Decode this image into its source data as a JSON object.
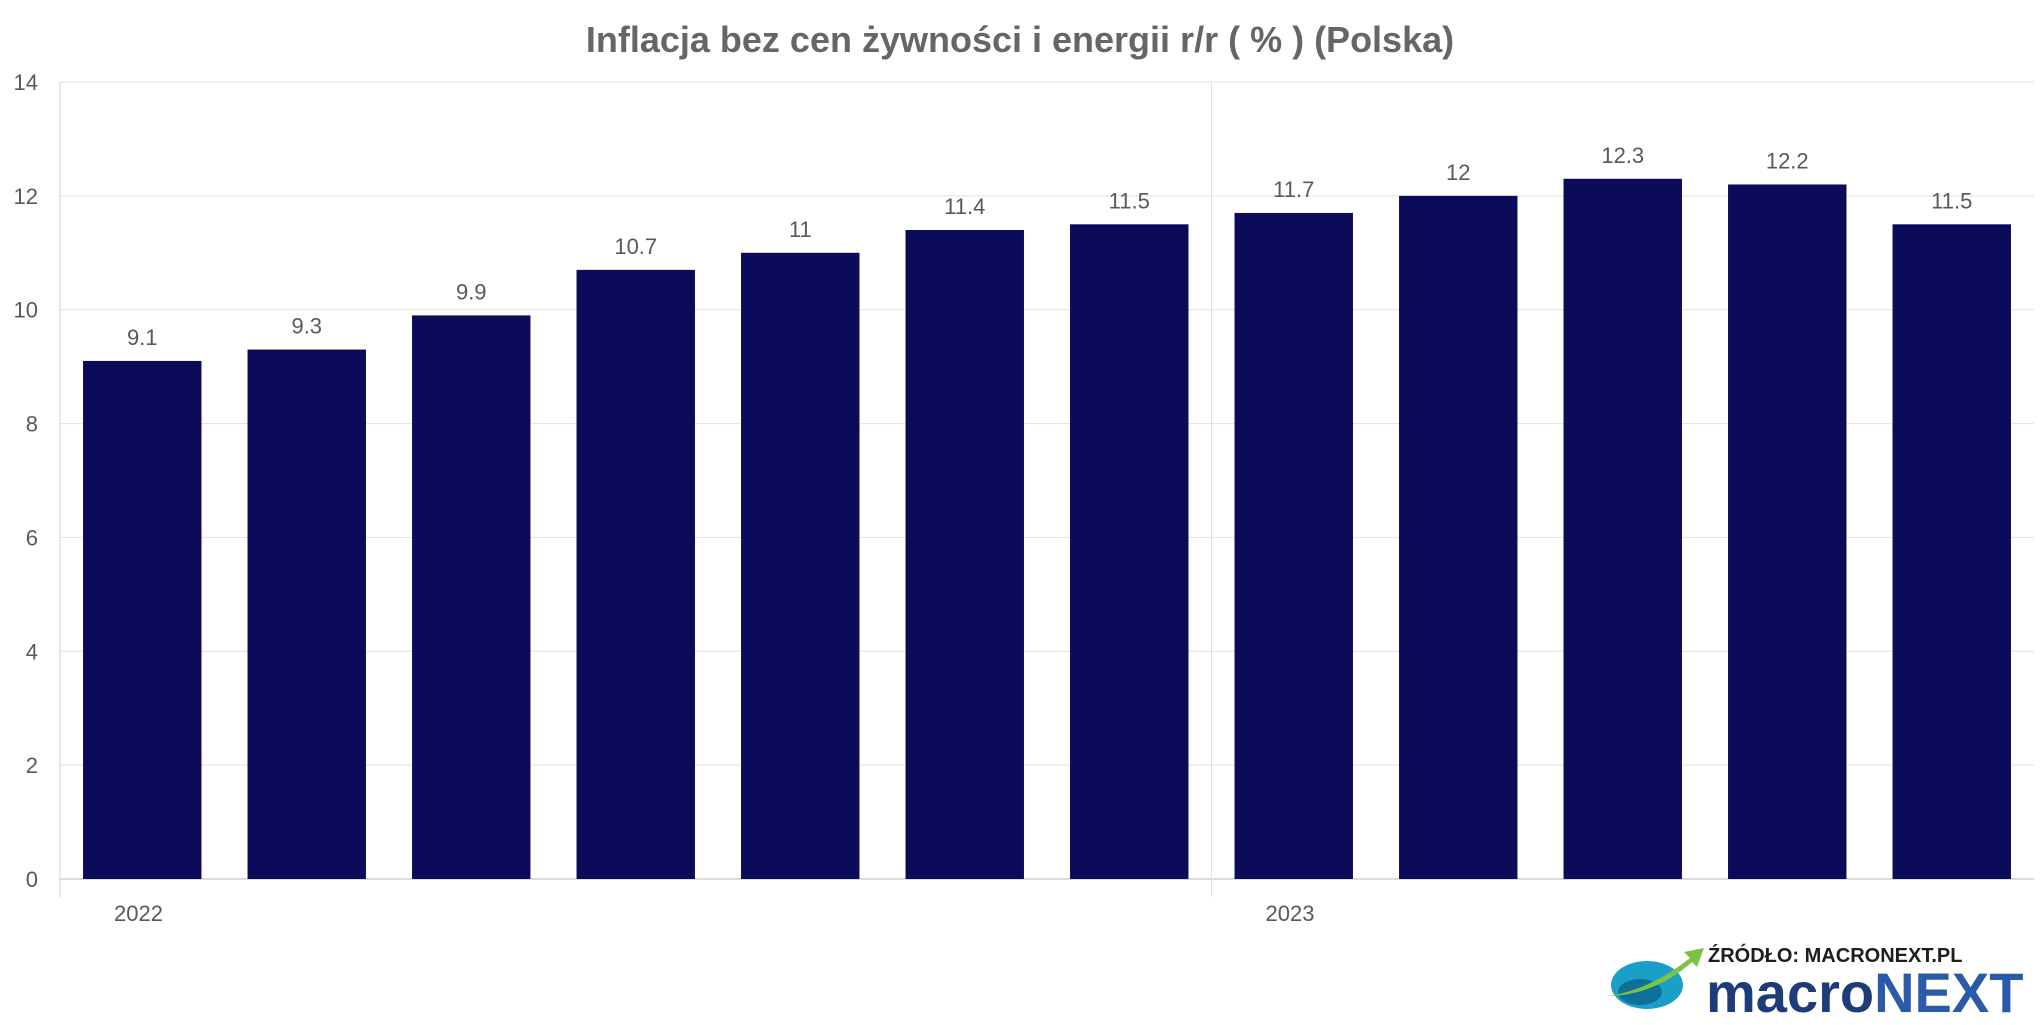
{
  "chart_data": {
    "type": "bar",
    "title": "Inflacja bez cen żywności i energii r/r ( % ) (Polska)",
    "xlabel": "",
    "ylabel": "",
    "ylim": [
      0,
      14
    ],
    "yticks": [
      0,
      2,
      4,
      6,
      8,
      10,
      12,
      14
    ],
    "grid": true,
    "legend": "none",
    "bar_color": "#0b0b5a",
    "year_labels": [
      {
        "label": "2022",
        "start_index": 0
      },
      {
        "label": "2023",
        "start_index": 7
      }
    ],
    "values": [
      9.1,
      9.3,
      9.9,
      10.7,
      11,
      11.4,
      11.5,
      11.7,
      12,
      12.3,
      12.2,
      11.5
    ],
    "data_labels": [
      "9.1",
      "9.3",
      "9.9",
      "10.7",
      "11",
      "11.4",
      "11.5",
      "11.7",
      "12",
      "12.3",
      "12.2",
      "11.5"
    ]
  },
  "branding": {
    "source_text": "ŹRÓDŁO: MACRONEXT.PL",
    "logo_part1": "macro",
    "logo_part2": "NEXT",
    "logo_icon": "globe-arrow-icon"
  }
}
